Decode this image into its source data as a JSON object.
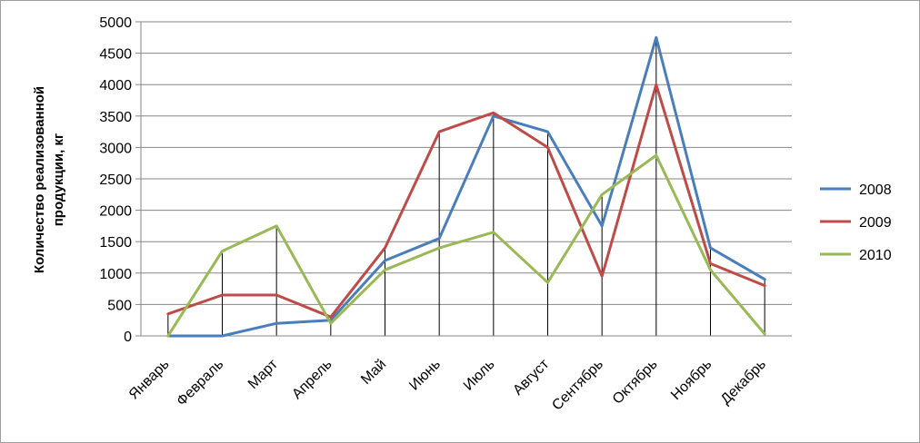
{
  "chart_data": {
    "type": "line",
    "ylabel_line1": "Количество реализованной",
    "ylabel_line2": "продукции, кг",
    "ylim": [
      0,
      5000
    ],
    "yticks": [
      0,
      500,
      1000,
      1500,
      2000,
      2500,
      3000,
      3500,
      4000,
      4500,
      5000
    ],
    "grid": true,
    "legend_position": "right",
    "categories": [
      "Январь",
      "Февраль",
      "Март",
      "Апрель",
      "Май",
      "Июнь",
      "Июль",
      "Август",
      "Сентябрь",
      "Октябрь",
      "Ноябрь",
      "Декабрь"
    ],
    "series": [
      {
        "name": "2008",
        "color": "#4a7ebb",
        "values": [
          0,
          0,
          200,
          250,
          1200,
          1550,
          3500,
          3250,
          1750,
          4750,
          1400,
          900
        ]
      },
      {
        "name": "2009",
        "color": "#be4b48",
        "values": [
          350,
          650,
          650,
          300,
          1400,
          3250,
          3550,
          3000,
          950,
          4000,
          1150,
          800
        ]
      },
      {
        "name": "2010",
        "color": "#98b954",
        "values": [
          0,
          1350,
          1750,
          200,
          1050,
          1400,
          1650,
          850,
          2250,
          2875,
          1050,
          30
        ]
      }
    ]
  }
}
